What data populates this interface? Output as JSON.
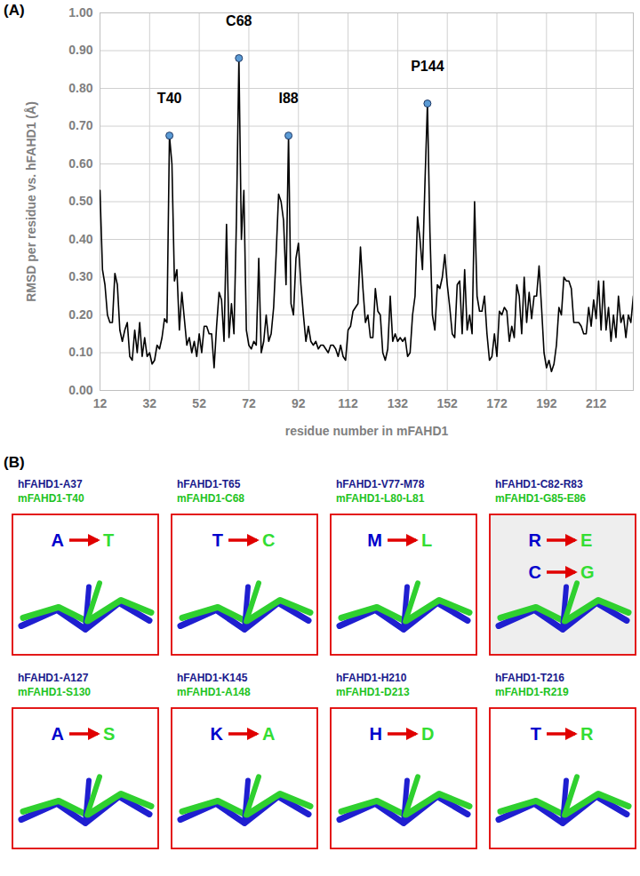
{
  "panel_labels": [
    "(A)",
    "(B)"
  ],
  "chart_data": {
    "type": "line",
    "xlabel": "residue number in mFAHD1",
    "ylabel": "RMSD per residue vs. hFAHD1 (Å)",
    "color": "#000000",
    "grid": true,
    "xlim": [
      12,
      227
    ],
    "xticks": [
      12,
      32,
      52,
      72,
      92,
      112,
      132,
      152,
      172,
      192,
      212
    ],
    "ylim": [
      0,
      1
    ],
    "yticks": [
      {
        "value": 0,
        "label": "0.00"
      },
      {
        "value": 0.1,
        "label": "0.10"
      },
      {
        "value": 0.2,
        "label": "0.20"
      },
      {
        "value": 0.3,
        "label": "0.30"
      },
      {
        "value": 0.4,
        "label": "0.40"
      },
      {
        "value": 0.5,
        "label": "0.50"
      },
      {
        "value": 0.6,
        "label": "0.60"
      },
      {
        "value": 0.7,
        "label": "0.70"
      },
      {
        "value": 0.8,
        "label": "0.80"
      },
      {
        "value": 0.9,
        "label": "0.90"
      },
      {
        "value": 1,
        "label": "1.00"
      }
    ],
    "x": [
      12,
      13,
      14,
      15,
      16,
      17,
      18,
      19,
      20,
      21,
      22,
      23,
      24,
      25,
      26,
      27,
      28,
      29,
      30,
      31,
      32,
      33,
      34,
      35,
      36,
      37,
      38,
      39,
      40,
      41,
      42,
      43,
      44,
      45,
      46,
      47,
      48,
      49,
      50,
      51,
      52,
      53,
      54,
      55,
      56,
      57,
      58,
      59,
      60,
      61,
      62,
      63,
      64,
      65,
      66,
      67,
      68,
      69,
      70,
      71,
      72,
      73,
      74,
      75,
      76,
      77,
      78,
      79,
      80,
      81,
      82,
      83,
      84,
      85,
      86,
      87,
      88,
      89,
      90,
      91,
      92,
      93,
      94,
      95,
      96,
      97,
      98,
      99,
      100,
      101,
      102,
      103,
      104,
      105,
      106,
      107,
      108,
      109,
      110,
      111,
      112,
      113,
      114,
      115,
      116,
      117,
      118,
      119,
      120,
      121,
      122,
      123,
      124,
      125,
      126,
      127,
      128,
      129,
      130,
      131,
      132,
      133,
      134,
      135,
      136,
      137,
      138,
      139,
      140,
      141,
      142,
      143,
      144,
      145,
      146,
      147,
      148,
      149,
      150,
      151,
      152,
      153,
      154,
      155,
      156,
      157,
      158,
      159,
      160,
      161,
      162,
      163,
      164,
      165,
      166,
      167,
      168,
      169,
      170,
      171,
      172,
      173,
      174,
      175,
      176,
      177,
      178,
      179,
      180,
      181,
      182,
      183,
      184,
      185,
      186,
      187,
      188,
      189,
      190,
      191,
      192,
      193,
      194,
      195,
      196,
      197,
      198,
      199,
      200,
      201,
      202,
      203,
      204,
      205,
      206,
      207,
      208,
      209,
      210,
      211,
      212,
      213,
      214,
      215,
      216,
      217,
      218,
      219,
      220,
      221,
      222,
      223,
      224,
      225,
      226,
      227
    ],
    "values": [
      0.53,
      0.32,
      0.28,
      0.2,
      0.18,
      0.18,
      0.31,
      0.28,
      0.16,
      0.13,
      0.16,
      0.18,
      0.09,
      0.08,
      0.16,
      0.1,
      0.18,
      0.09,
      0.14,
      0.09,
      0.1,
      0.07,
      0.08,
      0.12,
      0.11,
      0.14,
      0.19,
      0.18,
      0.675,
      0.6,
      0.29,
      0.32,
      0.16,
      0.26,
      0.19,
      0.12,
      0.14,
      0.1,
      0.13,
      0.09,
      0.15,
      0.1,
      0.17,
      0.17,
      0.15,
      0.15,
      0.06,
      0.17,
      0.26,
      0.24,
      0.13,
      0.44,
      0.14,
      0.23,
      0.15,
      0.45,
      0.88,
      0.4,
      0.53,
      0.16,
      0.12,
      0.11,
      0.13,
      0.12,
      0.35,
      0.1,
      0.13,
      0.2,
      0.13,
      0.15,
      0.22,
      0.36,
      0.52,
      0.5,
      0.45,
      0.28,
      0.675,
      0.23,
      0.2,
      0.35,
      0.39,
      0.28,
      0.2,
      0.13,
      0.17,
      0.13,
      0.12,
      0.13,
      0.11,
      0.12,
      0.12,
      0.11,
      0.1,
      0.12,
      0.12,
      0.11,
      0.09,
      0.12,
      0.09,
      0.08,
      0.16,
      0.17,
      0.21,
      0.22,
      0.23,
      0.38,
      0.27,
      0.18,
      0.2,
      0.14,
      0.14,
      0.27,
      0.21,
      0.2,
      0.1,
      0.08,
      0.11,
      0.25,
      0.13,
      0.15,
      0.13,
      0.14,
      0.13,
      0.14,
      0.09,
      0.1,
      0.2,
      0.25,
      0.46,
      0.4,
      0.32,
      0.55,
      0.76,
      0.42,
      0.2,
      0.16,
      0.28,
      0.27,
      0.3,
      0.36,
      0.28,
      0.22,
      0.15,
      0.14,
      0.28,
      0.29,
      0.15,
      0.32,
      0.16,
      0.2,
      0.15,
      0.5,
      0.25,
      0.21,
      0.21,
      0.25,
      0.15,
      0.08,
      0.09,
      0.15,
      0.09,
      0.21,
      0.2,
      0.22,
      0.21,
      0.13,
      0.17,
      0.14,
      0.28,
      0.25,
      0.15,
      0.3,
      0.18,
      0.26,
      0.19,
      0.25,
      0.25,
      0.33,
      0.22,
      0.1,
      0.06,
      0.08,
      0.05,
      0.07,
      0.12,
      0.22,
      0.2,
      0.3,
      0.29,
      0.29,
      0.27,
      0.18,
      0.18,
      0.18,
      0.17,
      0.15,
      0.15,
      0.22,
      0.17,
      0.24,
      0.19,
      0.29,
      0.16,
      0.29,
      0.16,
      0.22,
      0.13,
      0.2,
      0.14,
      0.25,
      0.18,
      0.2,
      0.14,
      0.2,
      0.18,
      0.25
    ],
    "annotations": [
      {
        "text": "T40",
        "x": 40,
        "y": 0.675
      },
      {
        "text": "C68",
        "x": 68,
        "y": 0.88
      },
      {
        "text": "I88",
        "x": 88,
        "y": 0.675
      },
      {
        "text": "P144",
        "x": 144,
        "y": 0.76
      }
    ]
  },
  "structure_panels": [
    {
      "human": "hFAHD1-A37",
      "mouse": "mFAHD1-T40",
      "changes": [
        {
          "from": "A",
          "to": "T"
        }
      ]
    },
    {
      "human": "hFAHD1-T65",
      "mouse": "mFAHD1-C68",
      "changes": [
        {
          "from": "T",
          "to": "C"
        }
      ]
    },
    {
      "human": "hFAHD1-V77-M78",
      "mouse": "mFAHD1-L80-L81",
      "changes": [
        {
          "from": "M",
          "to": "L"
        }
      ]
    },
    {
      "human": "hFAHD1-C82-R83",
      "mouse": "mFAHD1-G85-E86",
      "changes": [
        {
          "from": "R",
          "to": "E"
        },
        {
          "from": "C",
          "to": "G"
        }
      ]
    },
    {
      "human": "hFAHD1-A127",
      "mouse": "mFAHD1-S130",
      "changes": [
        {
          "from": "A",
          "to": "S"
        }
      ]
    },
    {
      "human": "hFAHD1-K145",
      "mouse": "mFAHD1-A148",
      "changes": [
        {
          "from": "K",
          "to": "A"
        }
      ]
    },
    {
      "human": "hFAHD1-H210",
      "mouse": "mFAHD1-D213",
      "changes": [
        {
          "from": "H",
          "to": "D"
        }
      ]
    },
    {
      "human": "hFAHD1-T216",
      "mouse": "mFAHD1-R219",
      "changes": [
        {
          "from": "T",
          "to": "R"
        }
      ]
    }
  ]
}
